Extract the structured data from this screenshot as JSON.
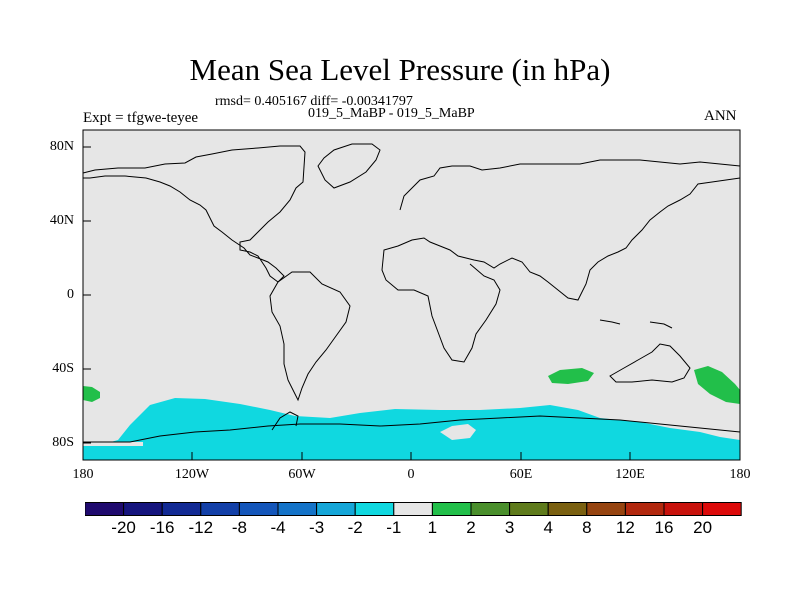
{
  "title": "Mean Sea Level Pressure (in hPa)",
  "stats_line": "rmsd= 0.405167 diff= -0.00341797",
  "comparison": "019_5_MaBP - 019_5_MaBP",
  "experiment": "Expt = tfgwe-teyee",
  "season": "ANN",
  "axes": {
    "lat_ticks": [
      {
        "label": "80N",
        "value": 80
      },
      {
        "label": "40N",
        "value": 40
      },
      {
        "label": "0",
        "value": 0
      },
      {
        "label": "40S",
        "value": -40
      },
      {
        "label": "80S",
        "value": -80
      }
    ],
    "lon_ticks": [
      {
        "label": "180",
        "value": -180
      },
      {
        "label": "120W",
        "value": -120
      },
      {
        "label": "60W",
        "value": -60
      },
      {
        "label": "0",
        "value": 0
      },
      {
        "label": "60E",
        "value": 60
      },
      {
        "label": "120E",
        "value": 120
      },
      {
        "label": "180",
        "value": 180
      }
    ]
  },
  "colorbar": {
    "labels": [
      "-20",
      "-16",
      "-12",
      "-8",
      "-4",
      "-3",
      "-2",
      "-1",
      "1",
      "2",
      "3",
      "4",
      "8",
      "12",
      "16",
      "20"
    ],
    "colors": [
      "#1f0a6e",
      "#16157e",
      "#122a94",
      "#1340a8",
      "#1456ba",
      "#1473c8",
      "#15a6d8",
      "#10d8e0",
      "#e6e6e6",
      "#22bf4a",
      "#4a8f2c",
      "#5f7b1c",
      "#7a6010",
      "#964410",
      "#b2280e",
      "#c8120c",
      "#dc0a0a"
    ]
  },
  "colors": {
    "background_field": "#e6e6e6",
    "positive_anomaly": "#22bf4a",
    "negative_anomaly": "#10d8e0"
  }
}
